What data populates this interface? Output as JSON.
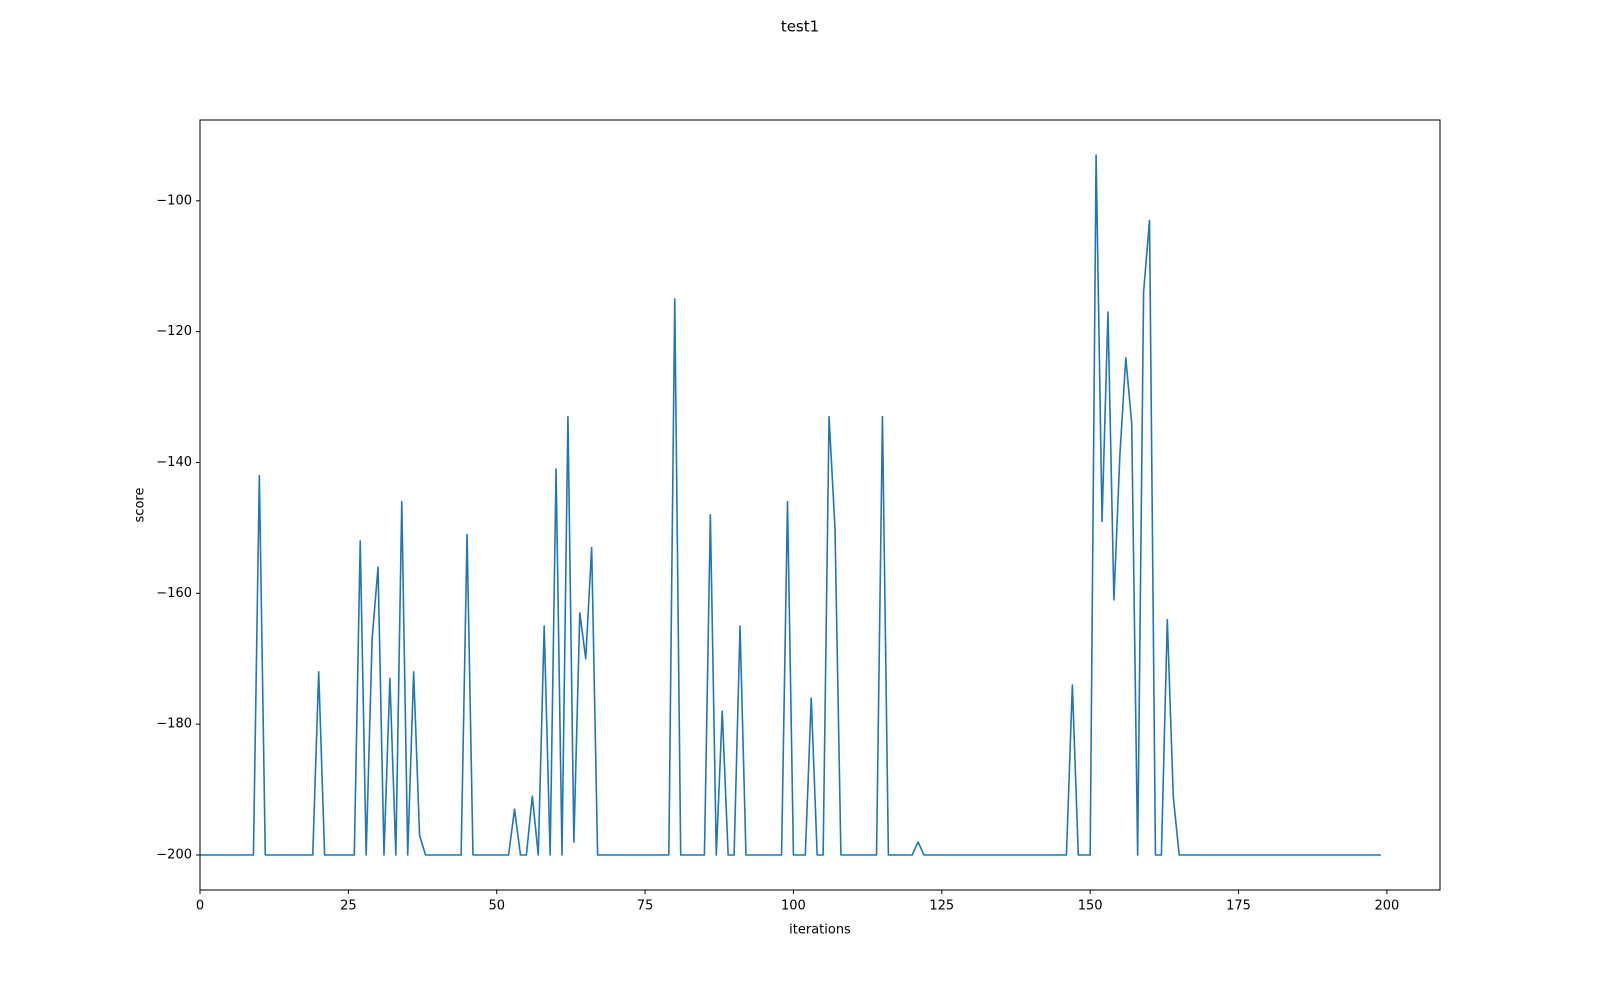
{
  "chart_data": {
    "type": "line",
    "title": "test1",
    "x_label": "iterations",
    "y_label": "score",
    "x": [
      0,
      1,
      2,
      3,
      4,
      5,
      6,
      7,
      8,
      9,
      10,
      11,
      12,
      13,
      14,
      15,
      16,
      17,
      18,
      19,
      20,
      21,
      22,
      23,
      24,
      25,
      26,
      27,
      28,
      29,
      30,
      31,
      32,
      33,
      34,
      35,
      36,
      37,
      38,
      39,
      40,
      41,
      42,
      43,
      44,
      45,
      46,
      47,
      48,
      49,
      50,
      51,
      52,
      53,
      54,
      55,
      56,
      57,
      58,
      59,
      60,
      61,
      62,
      63,
      64,
      65,
      66,
      67,
      68,
      69,
      70,
      71,
      72,
      73,
      74,
      75,
      76,
      77,
      78,
      79,
      80,
      81,
      82,
      83,
      84,
      85,
      86,
      87,
      88,
      89,
      90,
      91,
      92,
      93,
      94,
      95,
      96,
      97,
      98,
      99,
      100,
      101,
      102,
      103,
      104,
      105,
      106,
      107,
      108,
      109,
      110,
      111,
      112,
      113,
      114,
      115,
      116,
      117,
      118,
      119,
      120,
      121,
      122,
      123,
      124,
      125,
      126,
      127,
      128,
      129,
      130,
      131,
      132,
      133,
      134,
      135,
      136,
      137,
      138,
      139,
      140,
      141,
      142,
      143,
      144,
      145,
      146,
      147,
      148,
      149,
      150,
      151,
      152,
      153,
      154,
      155,
      156,
      157,
      158,
      159,
      160,
      161,
      162,
      163,
      164,
      165,
      166,
      167,
      168,
      169,
      170,
      171,
      172,
      173,
      174,
      175,
      176,
      177,
      178,
      179,
      180,
      181,
      182,
      183,
      184,
      185,
      186,
      187,
      188,
      189,
      190,
      191,
      192,
      193,
      194,
      195,
      196,
      197,
      198,
      199
    ],
    "values": [
      -200,
      -200,
      -200,
      -200,
      -200,
      -200,
      -200,
      -200,
      -200,
      -200,
      -142,
      -200,
      -200,
      -200,
      -200,
      -200,
      -200,
      -200,
      -200,
      -200,
      -172,
      -200,
      -200,
      -200,
      -200,
      -200,
      -200,
      -152,
      -200,
      -167,
      -156,
      -200,
      -173,
      -200,
      -146,
      -200,
      -172,
      -197,
      -200,
      -200,
      -200,
      -200,
      -200,
      -200,
      -200,
      -151,
      -200,
      -200,
      -200,
      -200,
      -200,
      -200,
      -200,
      -193,
      -200,
      -200,
      -191,
      -200,
      -165,
      -200,
      -141,
      -200,
      -133,
      -198,
      -163,
      -170,
      -153,
      -200,
      -200,
      -200,
      -200,
      -200,
      -200,
      -200,
      -200,
      -200,
      -200,
      -200,
      -200,
      -200,
      -115,
      -200,
      -200,
      -200,
      -200,
      -200,
      -148,
      -200,
      -178,
      -200,
      -200,
      -165,
      -200,
      -200,
      -200,
      -200,
      -200,
      -200,
      -200,
      -146,
      -200,
      -200,
      -200,
      -176,
      -200,
      -200,
      -133,
      -150,
      -200,
      -200,
      -200,
      -200,
      -200,
      -200,
      -200,
      -133,
      -200,
      -200,
      -200,
      -200,
      -200,
      -198,
      -200,
      -200,
      -200,
      -200,
      -200,
      -200,
      -200,
      -200,
      -200,
      -200,
      -200,
      -200,
      -200,
      -200,
      -200,
      -200,
      -200,
      -200,
      -200,
      -200,
      -200,
      -200,
      -200,
      -200,
      -200,
      -174,
      -200,
      -200,
      -200,
      -93,
      -149,
      -117,
      -161,
      -139,
      -124,
      -134,
      -200,
      -114,
      -103,
      -200,
      -200,
      -164,
      -191,
      -200,
      -200,
      -200,
      -200,
      -200,
      -200,
      -200,
      -200,
      -200,
      -200,
      -200,
      -200,
      -200,
      -200,
      -200,
      -200,
      -200,
      -200,
      -200,
      -200,
      -200,
      -200,
      -200,
      -200,
      -200,
      -200,
      -200,
      -200,
      -200,
      -200,
      -200,
      -200,
      -200,
      -200,
      -200
    ],
    "color": "#1f77b4",
    "xlim": [
      0,
      208.95
    ],
    "ylim": [
      -205.35,
      -87.65
    ],
    "xticks": [
      0,
      25,
      50,
      75,
      100,
      125,
      150,
      175,
      200
    ],
    "yticks": [
      {
        "value": -200,
        "label": "−200"
      },
      {
        "value": -180,
        "label": "−180"
      },
      {
        "value": -160,
        "label": "−160"
      },
      {
        "value": -140,
        "label": "−140"
      },
      {
        "value": -120,
        "label": "−120"
      },
      {
        "value": -100,
        "label": "−100"
      }
    ]
  }
}
